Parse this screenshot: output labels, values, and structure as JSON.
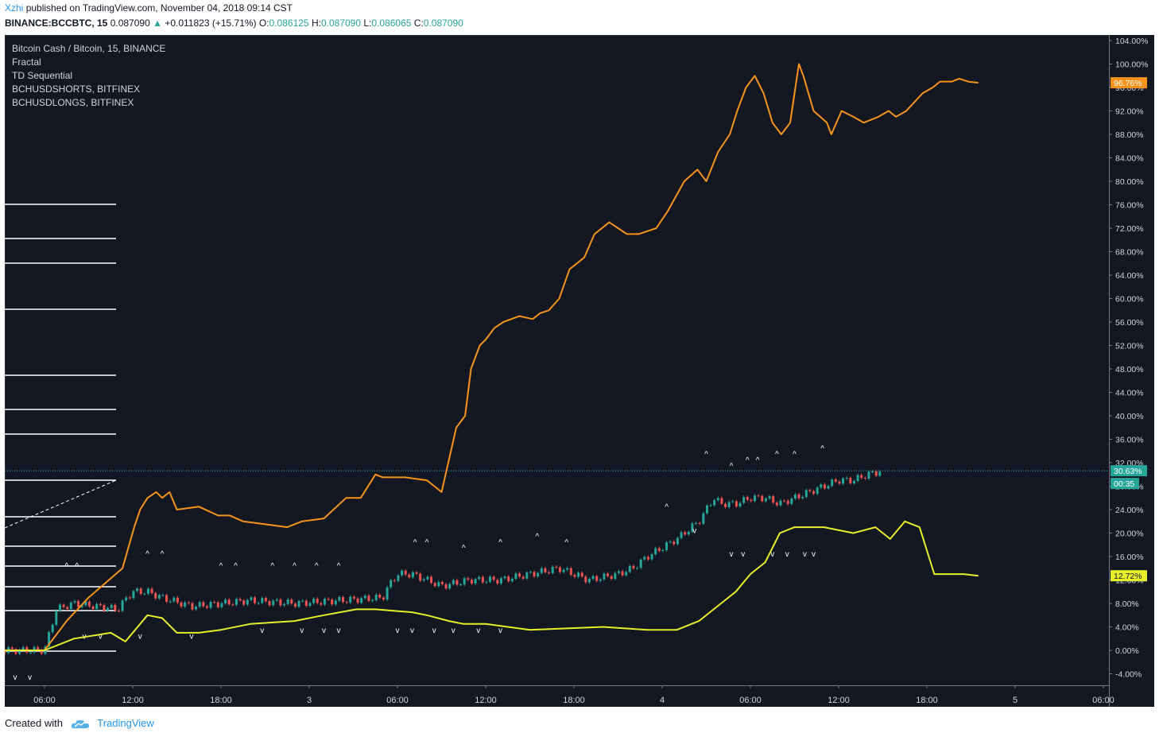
{
  "header": {
    "user": "Xzhi",
    "published_text": "published on TradingView.com, November 04, 2018 09:14 CST",
    "symbol": "BINANCE:BCCBTC, 15",
    "last": "0.087090",
    "change": "+0.011823 (+15.71%)",
    "o_label": "O:",
    "o_value": "0.086125",
    "h_label": "H:",
    "h_value": "0.087090",
    "l_label": "L:",
    "l_value": "0.086065",
    "c_label": "C:",
    "c_value": "0.087090"
  },
  "legend": {
    "title": "Bitcoin Cash / Bitcoin, 15, BINANCE",
    "items": [
      "Fractal",
      "TD Sequential",
      "BCHUSDSHORTS, BITFINEX",
      "BCHUSDLONGS, BITFINEX"
    ]
  },
  "badges": {
    "shorts": "96.76%",
    "price": "30.63%",
    "countdown": "00:35",
    "longs": "12.72%"
  },
  "colors": {
    "background": "#131722",
    "shorts_line": "#f7931a",
    "longs_line": "#e6ef2a",
    "up_candle": "#26a69a",
    "down_candle": "#ef5350",
    "price_line": "#26c6da"
  },
  "footer": {
    "created_with": "Created with",
    "brand": "TradingView"
  },
  "chart_data": {
    "type": "line",
    "y_unit": "percent",
    "ylim": [
      -6,
      105
    ],
    "y_ticks": [
      "104.00%",
      "100.00%",
      "96.00%",
      "92.00%",
      "88.00%",
      "84.00%",
      "80.00%",
      "76.00%",
      "72.00%",
      "68.00%",
      "64.00%",
      "60.00%",
      "56.00%",
      "52.00%",
      "48.00%",
      "44.00%",
      "40.00%",
      "36.00%",
      "32.00%",
      "28.00%",
      "24.00%",
      "20.00%",
      "16.00%",
      "12.00%",
      "8.00%",
      "4.00%",
      "0.00%",
      "-4.00%"
    ],
    "x_ticks": [
      "06:00",
      "12:00",
      "18:00",
      "3",
      "06:00",
      "12:00",
      "18:00",
      "4",
      "06:00",
      "12:00",
      "18:00",
      "5",
      "06:00"
    ],
    "x_range_hours": [
      -3.6,
      71.8
    ],
    "last_price_percent": 30.63,
    "series": [
      {
        "name": "BCHUSDSHORTS, BITFINEX",
        "color": "#f7931a",
        "x": [
          -2.7,
          0,
          1.5,
          3,
          5.3,
          6.1,
          6.5,
          7,
          7.6,
          8,
          8.5,
          9,
          10.5,
          11.8,
          12.6,
          13.5,
          15,
          16.5,
          17.5,
          19,
          20.5,
          21.5,
          22.5,
          23,
          24.5,
          26,
          27,
          28,
          28.6,
          29,
          29.6,
          30,
          30.6,
          31.2,
          32.3,
          33.2,
          33.7,
          34.3,
          35,
          35.7,
          36.2,
          36.7,
          37.4,
          38.4,
          39,
          39.6,
          40.4,
          41.6,
          42.4,
          43.5,
          44.4,
          45,
          45.8,
          46.6,
          47.1,
          47.7,
          48.3,
          48.9,
          49.5,
          50.1,
          50.7,
          51.3,
          51.6,
          52.3,
          53.2,
          53.5,
          54.2,
          55,
          55.7,
          56.7,
          57.4,
          57.9,
          58.6,
          59.7,
          60.4,
          60.9,
          61.7,
          62.2,
          62.8,
          63.5
        ],
        "y": [
          0,
          0,
          5,
          9,
          14,
          21,
          24,
          26,
          27,
          26,
          27,
          24,
          24.5,
          23,
          23,
          22,
          21.5,
          21,
          22,
          22.5,
          26,
          26,
          30,
          29.5,
          29.5,
          29,
          27,
          38,
          40,
          48,
          52,
          53,
          55,
          56,
          57,
          56.5,
          57.5,
          58,
          60,
          65,
          66,
          67,
          71,
          73,
          72,
          71,
          71,
          72,
          75,
          80,
          82,
          80,
          85,
          88,
          92,
          96,
          98,
          95,
          90,
          88,
          90,
          100,
          98,
          92,
          90,
          88,
          92,
          91,
          90,
          91,
          92,
          91,
          92,
          95,
          96,
          97,
          97,
          97.5,
          97,
          96.8
        ]
      },
      {
        "name": "BCHUSDLONGS, BITFINEX",
        "color": "#e6ef2a",
        "x": [
          -2.7,
          0,
          2,
          4.5,
          5.5,
          7,
          8,
          9,
          10.5,
          12,
          14,
          17,
          19,
          21.2,
          22.5,
          25,
          26,
          27.5,
          28.5,
          30,
          33,
          38,
          41,
          43,
          44.5,
          46,
          47,
          48,
          49,
          50,
          51,
          53,
          55,
          56.5,
          57.5,
          58.5,
          59.5,
          60.5,
          61.5,
          62.5,
          63.5
        ],
        "y": [
          0,
          0,
          2,
          3,
          1.5,
          6,
          5.5,
          3,
          3,
          3.5,
          4.5,
          5,
          6,
          7,
          7,
          6.5,
          6,
          5,
          4.5,
          4.5,
          3.5,
          4,
          3.5,
          3.5,
          5,
          8,
          10,
          13,
          15,
          20,
          21,
          21,
          20,
          21,
          19,
          22,
          21,
          13,
          13,
          13,
          12.72
        ]
      }
    ]
  }
}
